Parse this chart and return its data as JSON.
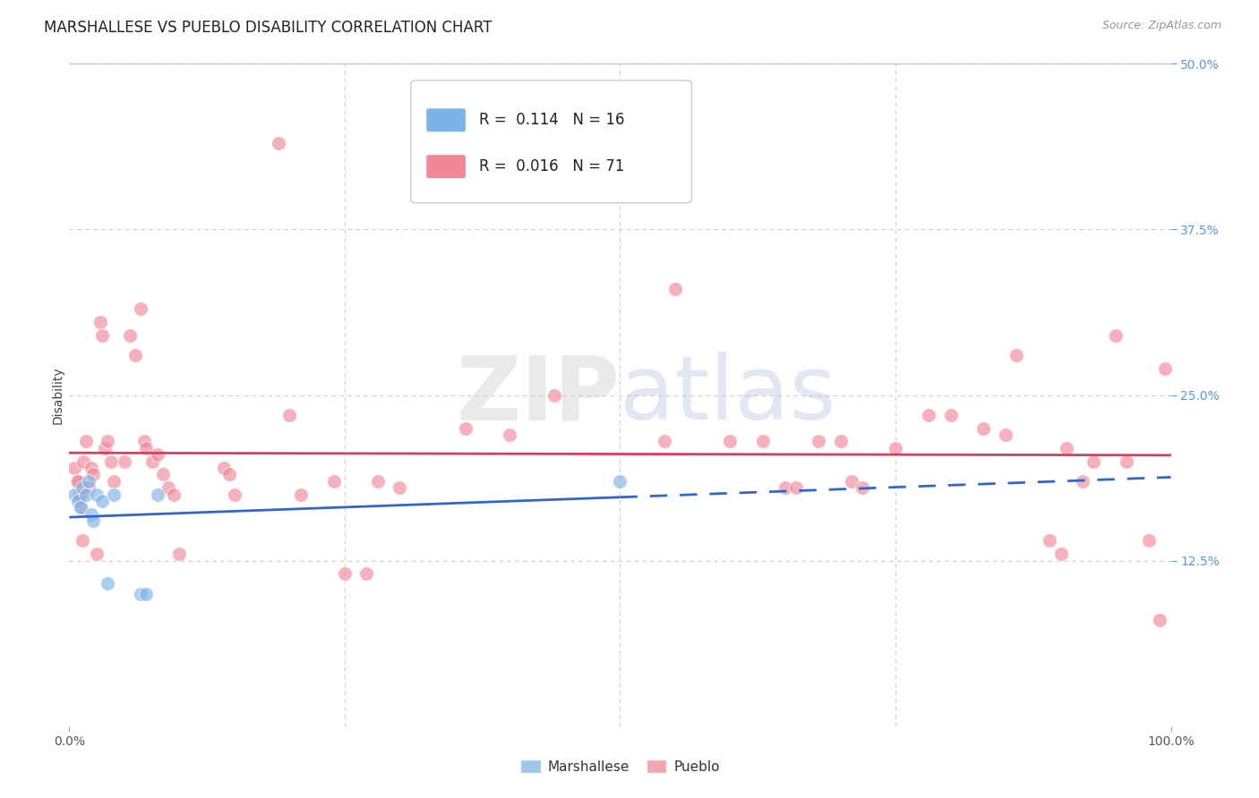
{
  "title": "MARSHALLESE VS PUEBLO DISABILITY CORRELATION CHART",
  "source": "Source: ZipAtlas.com",
  "ylabel": "Disability",
  "xlim": [
    0,
    1.0
  ],
  "ylim": [
    0,
    0.5
  ],
  "grid_color": "#cccccc",
  "background_color": "#ffffff",
  "marshallese_color": "#7eb3e8",
  "pueblo_color": "#f08898",
  "marshallese_line_color": "#3366cc",
  "pueblo_line_color": "#cc4466",
  "marshallese_R": 0.114,
  "marshallese_N": 16,
  "pueblo_R": 0.016,
  "pueblo_N": 71,
  "marshallese_x": [
    0.005,
    0.008,
    0.01,
    0.012,
    0.015,
    0.018,
    0.02,
    0.022,
    0.025,
    0.03,
    0.035,
    0.04,
    0.065,
    0.07,
    0.08,
    0.5
  ],
  "marshallese_y": [
    0.175,
    0.17,
    0.165,
    0.18,
    0.175,
    0.185,
    0.16,
    0.155,
    0.175,
    0.17,
    0.108,
    0.175,
    0.1,
    0.1,
    0.175,
    0.185
  ],
  "pueblo_x": [
    0.005,
    0.007,
    0.008,
    0.009,
    0.01,
    0.011,
    0.012,
    0.013,
    0.015,
    0.018,
    0.02,
    0.022,
    0.025,
    0.028,
    0.03,
    0.032,
    0.035,
    0.038,
    0.04,
    0.05,
    0.055,
    0.06,
    0.065,
    0.068,
    0.07,
    0.075,
    0.08,
    0.085,
    0.09,
    0.095,
    0.1,
    0.14,
    0.145,
    0.15,
    0.19,
    0.2,
    0.21,
    0.24,
    0.25,
    0.27,
    0.28,
    0.3,
    0.36,
    0.4,
    0.44,
    0.54,
    0.55,
    0.6,
    0.63,
    0.65,
    0.66,
    0.68,
    0.7,
    0.71,
    0.72,
    0.75,
    0.78,
    0.8,
    0.83,
    0.85,
    0.86,
    0.89,
    0.9,
    0.905,
    0.92,
    0.93,
    0.95,
    0.96,
    0.98,
    0.99,
    0.995
  ],
  "pueblo_y": [
    0.195,
    0.185,
    0.185,
    0.175,
    0.175,
    0.165,
    0.14,
    0.2,
    0.215,
    0.18,
    0.195,
    0.19,
    0.13,
    0.305,
    0.295,
    0.21,
    0.215,
    0.2,
    0.185,
    0.2,
    0.295,
    0.28,
    0.315,
    0.215,
    0.21,
    0.2,
    0.205,
    0.19,
    0.18,
    0.175,
    0.13,
    0.195,
    0.19,
    0.175,
    0.44,
    0.235,
    0.175,
    0.185,
    0.115,
    0.115,
    0.185,
    0.18,
    0.225,
    0.22,
    0.25,
    0.215,
    0.33,
    0.215,
    0.215,
    0.18,
    0.18,
    0.215,
    0.215,
    0.185,
    0.18,
    0.21,
    0.235,
    0.235,
    0.225,
    0.22,
    0.28,
    0.14,
    0.13,
    0.21,
    0.185,
    0.2,
    0.295,
    0.2,
    0.14,
    0.08,
    0.27
  ],
  "title_fontsize": 12,
  "axis_label_fontsize": 10,
  "tick_fontsize": 10,
  "legend_fontsize": 12,
  "source_fontsize": 9,
  "right_tick_color": "#5599dd"
}
